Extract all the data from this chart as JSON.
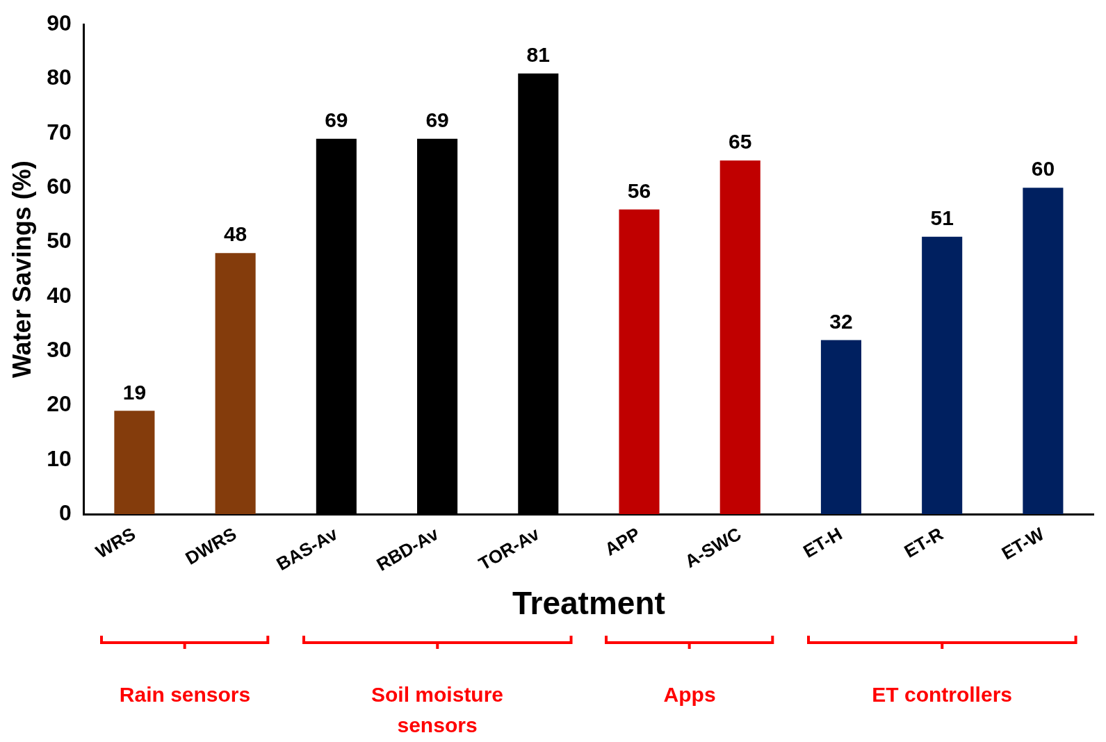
{
  "chart_data": {
    "type": "bar",
    "xlabel": "Treatment",
    "ylabel": "Water Savings (%)",
    "categories": [
      "WRS",
      "DWRS",
      "BAS-Av",
      "RBD-Av",
      "TOR-Av",
      "APP",
      "A-SWC",
      "ET-H",
      "ET-R",
      "ET-W"
    ],
    "values": [
      19,
      48,
      69,
      69,
      81,
      56,
      65,
      32,
      51,
      60
    ],
    "colors": [
      "#843c0c",
      "#843c0c",
      "#000000",
      "#000000",
      "#000000",
      "#c00000",
      "#c00000",
      "#002060",
      "#002060",
      "#002060"
    ],
    "ylim": [
      0,
      90
    ],
    "yticks": [
      0,
      10,
      20,
      30,
      40,
      50,
      60,
      70,
      80,
      90
    ],
    "grid": false,
    "legend": false,
    "data_labels": true,
    "annotations": [
      "Rain sensors",
      "Soil moisture sensors",
      "Apps",
      "ET controllers"
    ]
  }
}
